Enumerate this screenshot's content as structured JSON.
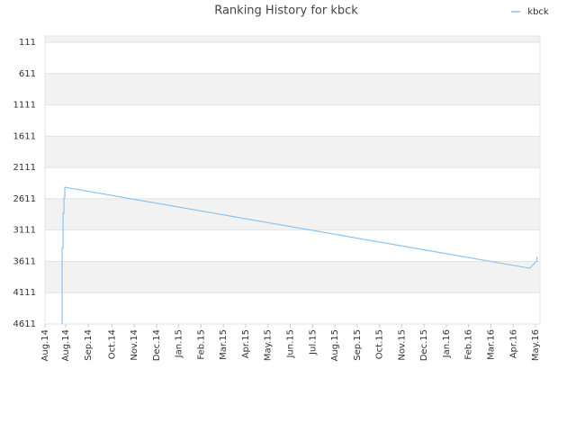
{
  "chart_data": {
    "type": "line",
    "title": "Ranking History for kbck",
    "x": [
      0.77,
      0.77,
      0.81,
      0.81,
      0.85,
      0.85,
      0.89,
      0.89,
      21.74,
      22.06,
      22.06
    ],
    "series": [
      {
        "name": "kbck",
        "color": "#8cc4f0",
        "values": [
          4611,
          3390,
          3390,
          2843,
          2843,
          2599,
          2599,
          2426,
          3720,
          3605,
          3534
        ]
      }
    ],
    "xlim": [
      0,
      22.2
    ],
    "xticks": [
      {
        "value": 0,
        "label": "Aug.14"
      },
      {
        "value": 0.93,
        "label": "Aug.14"
      },
      {
        "value": 1.94,
        "label": "Sep.14"
      },
      {
        "value": 3,
        "label": "Oct.14"
      },
      {
        "value": 4,
        "label": "Nov.14"
      },
      {
        "value": 5,
        "label": "Dec.14"
      },
      {
        "value": 6,
        "label": "Jan.15"
      },
      {
        "value": 7,
        "label": "Feb.15"
      },
      {
        "value": 8,
        "label": "Mar.15"
      },
      {
        "value": 9,
        "label": "Apr.15"
      },
      {
        "value": 10,
        "label": "May.15"
      },
      {
        "value": 11,
        "label": "Jun.15"
      },
      {
        "value": 12,
        "label": "Jul.15"
      },
      {
        "value": 13,
        "label": "Aug.15"
      },
      {
        "value": 14,
        "label": "Sep.15"
      },
      {
        "value": 15,
        "label": "Oct.15"
      },
      {
        "value": 16,
        "label": "Nov.15"
      },
      {
        "value": 17,
        "label": "Dec.15"
      },
      {
        "value": 18,
        "label": "Jan.16"
      },
      {
        "value": 19,
        "label": "Feb.16"
      },
      {
        "value": 20,
        "label": "Mar.16"
      },
      {
        "value": 21,
        "label": "Apr.16"
      },
      {
        "value": 22,
        "label": "May.16"
      }
    ],
    "ylim": [
      4611,
      10
    ],
    "yticks": [
      111,
      611,
      1111,
      1611,
      2111,
      2611,
      3111,
      3611,
      4111,
      4611
    ],
    "grid": true,
    "legend": "top-right"
  }
}
